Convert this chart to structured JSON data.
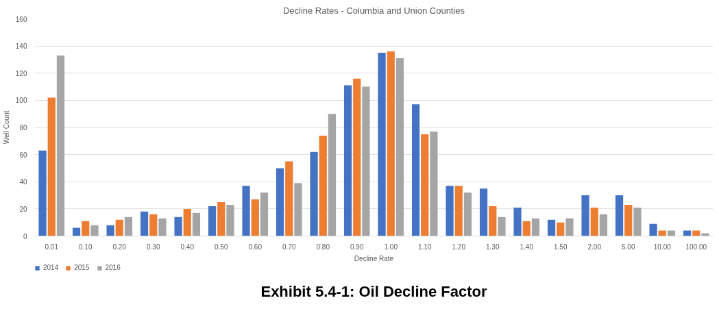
{
  "chart_data": {
    "type": "bar",
    "title": "Decline Rates - Columbia and Union Counties",
    "xlabel": "Decline Rate",
    "ylabel": "Well Count",
    "categories": [
      "0.01",
      "0.10",
      "0.20",
      "0.30",
      "0.40",
      "0.50",
      "0.60",
      "0.70",
      "0.80",
      "0.90",
      "1.00",
      "1.10",
      "1.20",
      "1.30",
      "1.40",
      "1.50",
      "2.00",
      "5.00",
      "10.00",
      "100.00"
    ],
    "series": [
      {
        "name": "2014",
        "color": "#4472c4",
        "values": [
          63,
          6,
          8,
          18,
          14,
          22,
          37,
          50,
          62,
          111,
          135,
          97,
          37,
          35,
          21,
          12,
          30,
          30,
          9,
          4
        ]
      },
      {
        "name": "2015",
        "color": "#ed7d31",
        "values": [
          102,
          11,
          12,
          16,
          20,
          25,
          27,
          55,
          74,
          116,
          136,
          75,
          37,
          22,
          11,
          10,
          21,
          23,
          4,
          4
        ]
      },
      {
        "name": "2016",
        "color": "#a5a5a5",
        "values": [
          133,
          8,
          14,
          13,
          17,
          23,
          32,
          39,
          90,
          110,
          131,
          77,
          32,
          14,
          13,
          13,
          16,
          21,
          4,
          2
        ]
      }
    ],
    "ylim": [
      0,
      160
    ],
    "yticks": [
      0,
      20,
      40,
      60,
      80,
      100,
      120,
      140,
      160
    ],
    "grid": "y",
    "legend": "bottom left",
    "annotations": [
      "Exhibit 5.4-1: Oil Decline Factor"
    ]
  }
}
